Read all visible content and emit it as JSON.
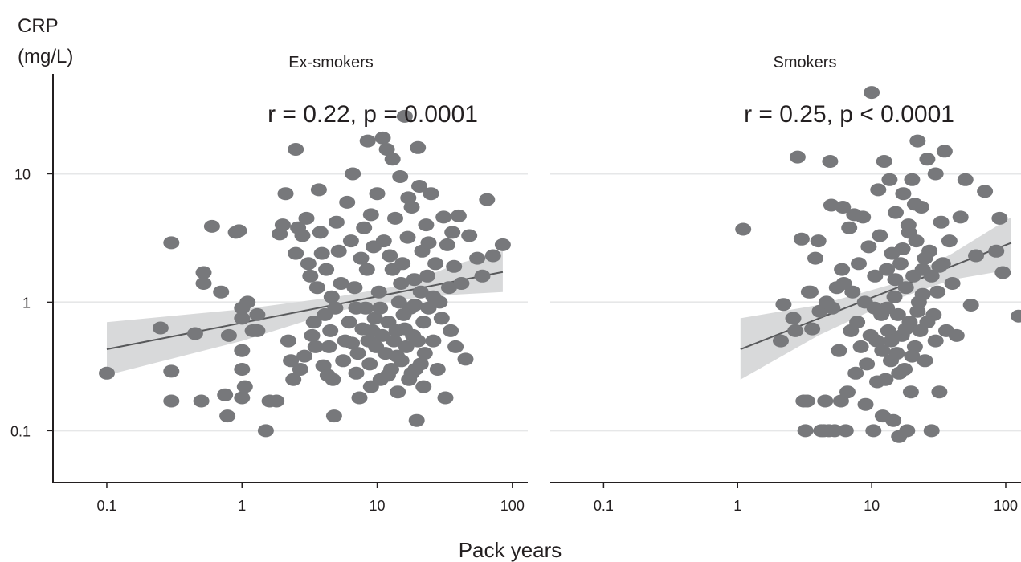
{
  "chart_data": {
    "type": "scatter",
    "ylabel": "CRP\n(mg/L)",
    "xlabel": "Pack years",
    "x_scale": "log",
    "y_scale": "log",
    "xlim": [
      0.04,
      130
    ],
    "ylim": [
      0.04,
      60
    ],
    "x_ticks": [
      0.1,
      1,
      10,
      100
    ],
    "x_tick_labels": [
      "0.1",
      "1",
      "10",
      "100"
    ],
    "y_ticks": [
      0.1,
      1,
      10
    ],
    "y_tick_labels": [
      "0.1",
      "1",
      "10"
    ],
    "grid": "horizontal",
    "colors": {
      "points": "#77787b",
      "band": "#d8d9da",
      "line": "#58595b",
      "grid": "#e6e7e8",
      "axis": "#231f20"
    },
    "panels": [
      {
        "title": "Ex-smokers",
        "annotation": "r = 0.22, p = 0.0001",
        "fit": {
          "x0": 0.1,
          "y0": 0.43,
          "x1": 85,
          "y1": 1.72
        },
        "band": [
          {
            "x": 0.1,
            "lo": 0.27,
            "hi": 0.7
          },
          {
            "x": 1,
            "lo": 0.5,
            "hi": 0.88
          },
          {
            "x": 5,
            "lo": 0.85,
            "hi": 1.1
          },
          {
            "x": 15,
            "lo": 1.05,
            "hi": 1.35
          },
          {
            "x": 40,
            "lo": 1.15,
            "hi": 2.0
          },
          {
            "x": 85,
            "lo": 1.2,
            "hi": 2.5
          }
        ],
        "points": [
          [
            0.1,
            0.28
          ],
          [
            0.25,
            0.63
          ],
          [
            0.3,
            2.9
          ],
          [
            0.3,
            0.29
          ],
          [
            0.3,
            0.17
          ],
          [
            0.45,
            0.57
          ],
          [
            0.5,
            0.17
          ],
          [
            0.52,
            1.7
          ],
          [
            0.52,
            1.4
          ],
          [
            0.7,
            1.2
          ],
          [
            0.6,
            3.9
          ],
          [
            0.75,
            0.19
          ],
          [
            0.78,
            0.13
          ],
          [
            0.8,
            0.55
          ],
          [
            0.9,
            3.5
          ],
          [
            0.95,
            3.6
          ],
          [
            1.0,
            0.9
          ],
          [
            1.0,
            0.75
          ],
          [
            1.0,
            0.42
          ],
          [
            1.0,
            0.3
          ],
          [
            1.0,
            0.18
          ],
          [
            1.05,
            0.22
          ],
          [
            1.1,
            1.0
          ],
          [
            1.2,
            0.6
          ],
          [
            1.3,
            0.8
          ],
          [
            1.3,
            0.6
          ],
          [
            1.5,
            0.1
          ],
          [
            1.6,
            0.17
          ],
          [
            1.8,
            0.17
          ],
          [
            1.9,
            3.4
          ],
          [
            2.0,
            4.0
          ],
          [
            2.1,
            7.0
          ],
          [
            2.2,
            0.5
          ],
          [
            2.3,
            0.35
          ],
          [
            2.4,
            0.25
          ],
          [
            2.5,
            15.5
          ],
          [
            2.5,
            2.4
          ],
          [
            2.6,
            3.8
          ],
          [
            2.7,
            0.3
          ],
          [
            2.8,
            3.3
          ],
          [
            2.9,
            0.38
          ],
          [
            3.0,
            4.5
          ],
          [
            3.1,
            2.0
          ],
          [
            3.2,
            1.6
          ],
          [
            3.3,
            0.55
          ],
          [
            3.4,
            0.7
          ],
          [
            3.5,
            0.45
          ],
          [
            3.6,
            1.3
          ],
          [
            3.7,
            7.5
          ],
          [
            3.8,
            3.5
          ],
          [
            3.9,
            2.4
          ],
          [
            4.0,
            0.32
          ],
          [
            4.1,
            0.8
          ],
          [
            4.2,
            1.8
          ],
          [
            4.3,
            0.27
          ],
          [
            4.4,
            0.45
          ],
          [
            4.5,
            0.6
          ],
          [
            4.6,
            1.1
          ],
          [
            4.7,
            0.25
          ],
          [
            4.8,
            0.13
          ],
          [
            4.9,
            0.9
          ],
          [
            5.0,
            4.2
          ],
          [
            5.2,
            2.5
          ],
          [
            5.4,
            1.4
          ],
          [
            5.6,
            0.35
          ],
          [
            5.8,
            0.5
          ],
          [
            6.0,
            6.0
          ],
          [
            6.2,
            0.7
          ],
          [
            6.4,
            3.0
          ],
          [
            6.6,
            10.0
          ],
          [
            6.8,
            1.3
          ],
          [
            7.0,
            0.28
          ],
          [
            7.2,
            0.4
          ],
          [
            7.4,
            0.18
          ],
          [
            7.6,
            2.2
          ],
          [
            7.8,
            0.62
          ],
          [
            8.0,
            3.8
          ],
          [
            8.2,
            0.9
          ],
          [
            8.4,
            1.8
          ],
          [
            8.6,
            0.5
          ],
          [
            8.8,
            0.33
          ],
          [
            9.0,
            4.8
          ],
          [
            9.2,
            0.6
          ],
          [
            9.4,
            2.7
          ],
          [
            9.6,
            0.75
          ],
          [
            9.8,
            0.45
          ],
          [
            10.0,
            7.0
          ],
          [
            10.3,
            1.2
          ],
          [
            10.6,
            0.25
          ],
          [
            10.9,
            0.55
          ],
          [
            11.2,
            3.0
          ],
          [
            11.5,
            0.4
          ],
          [
            11.8,
            15.5
          ],
          [
            12.1,
            0.7
          ],
          [
            12.4,
            2.3
          ],
          [
            12.7,
            0.3
          ],
          [
            13.0,
            1.8
          ],
          [
            13.3,
            0.5
          ],
          [
            13.6,
            4.5
          ],
          [
            13.9,
            0.6
          ],
          [
            14.2,
            0.2
          ],
          [
            14.5,
            1.0
          ],
          [
            14.8,
            9.5
          ],
          [
            15.1,
            0.35
          ],
          [
            15.4,
            2.0
          ],
          [
            15.7,
            0.8
          ],
          [
            16.0,
            28.0
          ],
          [
            16.4,
            0.45
          ],
          [
            16.8,
            3.2
          ],
          [
            17.2,
            0.25
          ],
          [
            17.6,
            0.9
          ],
          [
            18.0,
            5.5
          ],
          [
            18.4,
            0.55
          ],
          [
            18.8,
            1.5
          ],
          [
            19.2,
            0.3
          ],
          [
            19.6,
            0.12
          ],
          [
            20.0,
            16.0
          ],
          [
            20.5,
            8.0
          ],
          [
            21.0,
            1.2
          ],
          [
            21.5,
            2.5
          ],
          [
            22.0,
            0.7
          ],
          [
            22.5,
            0.4
          ],
          [
            23.0,
            4.0
          ],
          [
            23.5,
            1.6
          ],
          [
            24.0,
            0.9
          ],
          [
            25.0,
            7.0
          ],
          [
            26.0,
            0.5
          ],
          [
            27.0,
            2.0
          ],
          [
            28.0,
            0.3
          ],
          [
            29.0,
            1.0
          ],
          [
            30.0,
            0.75
          ],
          [
            31.0,
            4.6
          ],
          [
            32.0,
            0.18
          ],
          [
            33.0,
            2.8
          ],
          [
            34.0,
            1.3
          ],
          [
            35.0,
            0.6
          ],
          [
            36.0,
            3.5
          ],
          [
            37.0,
            1.9
          ],
          [
            38.0,
            0.45
          ],
          [
            40.0,
            4.7
          ],
          [
            42.0,
            1.4
          ],
          [
            45.0,
            0.36
          ],
          [
            48.0,
            3.3
          ],
          [
            55.0,
            2.2
          ],
          [
            60.0,
            1.6
          ],
          [
            65.0,
            6.3
          ],
          [
            72.0,
            2.3
          ],
          [
            85.0,
            2.8
          ],
          [
            8.5,
            18.0
          ],
          [
            11.0,
            19.0
          ],
          [
            13.0,
            13.0
          ],
          [
            17.0,
            6.5
          ],
          [
            22.0,
            0.22
          ],
          [
            12.0,
            0.27
          ],
          [
            14.0,
            0.38
          ],
          [
            18.0,
            0.28
          ],
          [
            9.0,
            0.22
          ],
          [
            6.5,
            0.48
          ],
          [
            16.0,
            0.62
          ],
          [
            19.0,
            0.95
          ],
          [
            24.0,
            2.9
          ],
          [
            21.0,
            0.33
          ],
          [
            15.0,
            1.4
          ],
          [
            7.0,
            0.9
          ],
          [
            26.0,
            1.1
          ],
          [
            20.0,
            0.5
          ],
          [
            10.5,
            0.9
          ]
        ]
      },
      {
        "title": "Smokers",
        "annotation": "r = 0.25, p < 0.0001",
        "fit": {
          "x0": 1.05,
          "y0": 0.43,
          "x1": 110,
          "y1": 2.9
        },
        "band": [
          {
            "x": 1.05,
            "lo": 0.25,
            "hi": 0.75
          },
          {
            "x": 4,
            "lo": 0.55,
            "hi": 0.95
          },
          {
            "x": 15,
            "lo": 1.05,
            "hi": 1.4
          },
          {
            "x": 40,
            "lo": 1.5,
            "hi": 2.4
          },
          {
            "x": 110,
            "lo": 1.8,
            "hi": 4.6
          }
        ],
        "points": [
          [
            1.1,
            3.7
          ],
          [
            2.2,
            0.96
          ],
          [
            2.1,
            0.5
          ],
          [
            2.6,
            0.75
          ],
          [
            2.7,
            0.6
          ],
          [
            2.8,
            13.5
          ],
          [
            3.0,
            3.1
          ],
          [
            3.1,
            0.17
          ],
          [
            3.2,
            0.1
          ],
          [
            3.3,
            0.17
          ],
          [
            3.4,
            1.2
          ],
          [
            3.5,
            1.2
          ],
          [
            3.6,
            0.62
          ],
          [
            3.8,
            2.2
          ],
          [
            4.0,
            3.0
          ],
          [
            4.1,
            0.85
          ],
          [
            4.2,
            0.1
          ],
          [
            4.4,
            0.1
          ],
          [
            4.5,
            0.17
          ],
          [
            4.6,
            1.0
          ],
          [
            4.8,
            0.1
          ],
          [
            4.9,
            12.5
          ],
          [
            5.0,
            5.7
          ],
          [
            5.1,
            0.9
          ],
          [
            5.3,
            0.1
          ],
          [
            5.5,
            1.3
          ],
          [
            5.7,
            0.42
          ],
          [
            5.9,
            0.17
          ],
          [
            6.0,
            1.8
          ],
          [
            6.1,
            5.5
          ],
          [
            6.2,
            1.4
          ],
          [
            6.4,
            0.1
          ],
          [
            6.6,
            0.2
          ],
          [
            6.8,
            3.8
          ],
          [
            7.0,
            0.6
          ],
          [
            7.2,
            1.2
          ],
          [
            7.4,
            4.8
          ],
          [
            7.6,
            0.28
          ],
          [
            7.8,
            0.7
          ],
          [
            8.0,
            2.0
          ],
          [
            8.3,
            0.45
          ],
          [
            8.6,
            4.6
          ],
          [
            8.9,
            1.0
          ],
          [
            9.2,
            0.33
          ],
          [
            9.5,
            2.7
          ],
          [
            9.8,
            0.55
          ],
          [
            10.0,
            43.0
          ],
          [
            10.3,
            0.1
          ],
          [
            10.6,
            1.6
          ],
          [
            10.9,
            0.5
          ],
          [
            11.2,
            7.5
          ],
          [
            11.5,
            3.3
          ],
          [
            11.8,
            0.8
          ],
          [
            12.1,
            0.13
          ],
          [
            12.4,
            12.5
          ],
          [
            12.7,
            0.25
          ],
          [
            13.0,
            1.8
          ],
          [
            13.3,
            0.6
          ],
          [
            13.6,
            9.0
          ],
          [
            13.9,
            0.35
          ],
          [
            14.2,
            2.4
          ],
          [
            14.5,
            0.12
          ],
          [
            14.8,
            1.1
          ],
          [
            15.1,
            5.0
          ],
          [
            15.4,
            0.4
          ],
          [
            15.7,
            0.8
          ],
          [
            16.0,
            0.09
          ],
          [
            16.4,
            2.0
          ],
          [
            16.8,
            0.55
          ],
          [
            17.2,
            7.0
          ],
          [
            17.6,
            0.3
          ],
          [
            18.0,
            1.3
          ],
          [
            18.4,
            0.1
          ],
          [
            18.8,
            4.0
          ],
          [
            19.2,
            0.7
          ],
          [
            19.6,
            0.2
          ],
          [
            20.0,
            9.0
          ],
          [
            20.5,
            1.6
          ],
          [
            21.0,
            0.45
          ],
          [
            21.5,
            3.0
          ],
          [
            22.0,
            18.0
          ],
          [
            22.5,
            1.0
          ],
          [
            23.0,
            0.6
          ],
          [
            23.5,
            5.5
          ],
          [
            24.0,
            1.8
          ],
          [
            25.0,
            0.35
          ],
          [
            26.0,
            13.0
          ],
          [
            27.0,
            2.5
          ],
          [
            28.0,
            0.1
          ],
          [
            29.0,
            0.8
          ],
          [
            30.0,
            10.0
          ],
          [
            31.0,
            1.2
          ],
          [
            32.0,
            0.2
          ],
          [
            33.0,
            4.2
          ],
          [
            34.0,
            2.0
          ],
          [
            35.0,
            15.0
          ],
          [
            36.0,
            0.6
          ],
          [
            38.0,
            3.0
          ],
          [
            40.0,
            1.4
          ],
          [
            43.0,
            0.55
          ],
          [
            46.0,
            4.6
          ],
          [
            50.0,
            9.0
          ],
          [
            55.0,
            0.95
          ],
          [
            60.0,
            2.3
          ],
          [
            70.0,
            7.3
          ],
          [
            85.0,
            2.5
          ],
          [
            90.0,
            4.5
          ],
          [
            95.0,
            1.7
          ],
          [
            125.0,
            0.78
          ],
          [
            12.0,
            0.42
          ],
          [
            14.0,
            0.5
          ],
          [
            16.0,
            0.28
          ],
          [
            18.0,
            0.62
          ],
          [
            20.0,
            0.38
          ],
          [
            22.0,
            0.85
          ],
          [
            24.0,
            1.15
          ],
          [
            11.0,
            0.24
          ],
          [
            13.0,
            0.9
          ],
          [
            15.0,
            1.5
          ],
          [
            17.0,
            2.6
          ],
          [
            19.0,
            3.5
          ],
          [
            21.0,
            5.8
          ],
          [
            25.0,
            2.2
          ],
          [
            28.0,
            1.6
          ],
          [
            30.0,
            0.5
          ],
          [
            9.0,
            0.16
          ],
          [
            10.5,
            0.9
          ],
          [
            26.0,
            0.7
          ],
          [
            32.0,
            1.9
          ]
        ]
      }
    ]
  }
}
